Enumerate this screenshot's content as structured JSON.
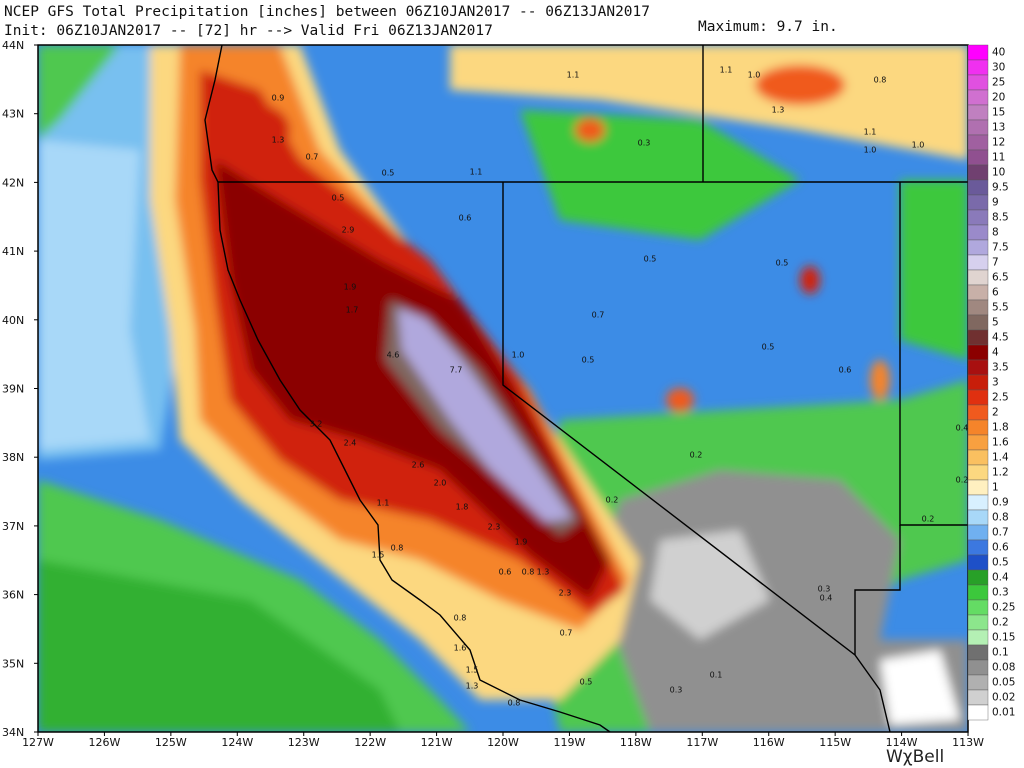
{
  "header": {
    "title": "NCEP GFS Total Precipitation [inches] between 06Z10JAN2017 -- 06Z13JAN2017",
    "subtitle": "Init: 06Z10JAN2017 -- [72] hr --> Valid Fri 06Z13JAN2017",
    "maximum": "Maximum: 9.7 in."
  },
  "map": {
    "lat_labels": [
      "44N",
      "43N",
      "42N",
      "41N",
      "40N",
      "39N",
      "38N",
      "37N",
      "36N",
      "35N",
      "34N"
    ],
    "lon_labels": [
      "127W",
      "126W",
      "125W",
      "124W",
      "123W",
      "122W",
      "121W",
      "120W",
      "119W",
      "118W",
      "117W",
      "116W",
      "115W",
      "114W",
      "113W"
    ],
    "point_labels": [
      "0.9",
      "1.3",
      "0.7",
      "0.5",
      "0.5",
      "2.9",
      "1.9",
      "1.7",
      "4.6",
      "7.7",
      "3.2",
      "2.4",
      "2.6",
      "2.0",
      "1.8",
      "2.3",
      "1.9",
      "0.6",
      "0.8",
      "1.3",
      "2.3",
      "0.7",
      "0.8",
      "1.6",
      "1.5",
      "1.3",
      "0.8",
      "0.5",
      "0.3",
      "0.1",
      "0.2",
      "0.2",
      "1.0",
      "0.7",
      "0.5",
      "0.5",
      "0.5",
      "0.5",
      "0.6",
      "0.3",
      "1.1",
      "1.1",
      "1.0",
      "1.3",
      "0.8",
      "1.1",
      "1.0",
      "1.0",
      "0.6",
      "1.1",
      "0.3",
      "0.4",
      "0.2",
      "0.2",
      "0.4",
      "1.1",
      "0.8",
      "1.5"
    ]
  },
  "legend": {
    "levels": [
      {
        "label": "40",
        "color": "#ff00ff"
      },
      {
        "label": "30",
        "color": "#f030f0"
      },
      {
        "label": "25",
        "color": "#e050e0"
      },
      {
        "label": "20",
        "color": "#d070d0"
      },
      {
        "label": "15",
        "color": "#c080c0"
      },
      {
        "label": "13",
        "color": "#b070b0"
      },
      {
        "label": "12",
        "color": "#a060a0"
      },
      {
        "label": "11",
        "color": "#905090"
      },
      {
        "label": "10",
        "color": "#704070"
      },
      {
        "label": "9.5",
        "color": "#6a5a9a"
      },
      {
        "label": "9",
        "color": "#7a6aaa"
      },
      {
        "label": "8.5",
        "color": "#8a7aba"
      },
      {
        "label": "8",
        "color": "#9a8aca"
      },
      {
        "label": "7.5",
        "color": "#b0a8dd"
      },
      {
        "label": "7",
        "color": "#d6d0ee"
      },
      {
        "label": "6.5",
        "color": "#e0d4d0"
      },
      {
        "label": "6",
        "color": "#c8b0a8"
      },
      {
        "label": "5.5",
        "color": "#a08880"
      },
      {
        "label": "5",
        "color": "#806860"
      },
      {
        "label": "4.5",
        "color": "#703030"
      },
      {
        "label": "4",
        "color": "#8b0000"
      },
      {
        "label": "3.5",
        "color": "#a81010"
      },
      {
        "label": "3",
        "color": "#c81e0a"
      },
      {
        "label": "2.5",
        "color": "#e03010"
      },
      {
        "label": "2",
        "color": "#f05a1e"
      },
      {
        "label": "1.8",
        "color": "#f5842a"
      },
      {
        "label": "1.6",
        "color": "#f8a040"
      },
      {
        "label": "1.4",
        "color": "#fac060"
      },
      {
        "label": "1.2",
        "color": "#fcd880"
      },
      {
        "label": "1",
        "color": "#fff0c0"
      },
      {
        "label": "0.9",
        "color": "#d8f0ff"
      },
      {
        "label": "0.8",
        "color": "#a8d8f8"
      },
      {
        "label": "0.7",
        "color": "#70b0f0"
      },
      {
        "label": "0.6",
        "color": "#3c78e0"
      },
      {
        "label": "0.5",
        "color": "#1e50c8"
      },
      {
        "label": "0.4",
        "color": "#28a028"
      },
      {
        "label": "0.3",
        "color": "#3cc83c"
      },
      {
        "label": "0.25",
        "color": "#64dc64"
      },
      {
        "label": "0.2",
        "color": "#8ce68c"
      },
      {
        "label": "0.15",
        "color": "#b4f0b4"
      },
      {
        "label": "0.1",
        "color": "#707070"
      },
      {
        "label": "0.08",
        "color": "#909090"
      },
      {
        "label": "0.05",
        "color": "#b0b0b0"
      },
      {
        "label": "0.02",
        "color": "#d0d0d0"
      },
      {
        "label": "0.01",
        "color": "#ffffff"
      }
    ]
  },
  "logo": "WχBell"
}
